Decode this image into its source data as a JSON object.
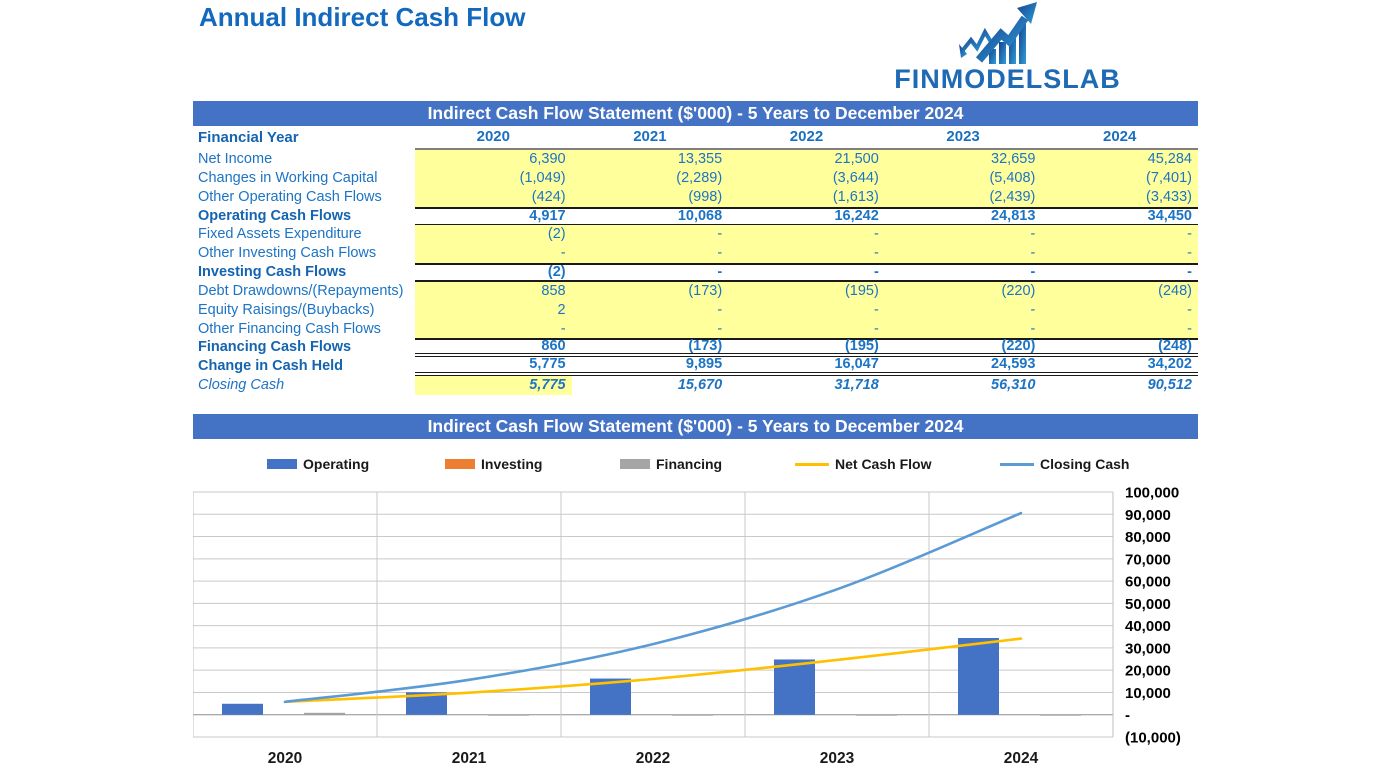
{
  "page": {
    "title": "Annual Indirect Cash Flow"
  },
  "logo": {
    "text": "FINMODELSLAB",
    "icon": "growth-chart-arrow-icon"
  },
  "colors": {
    "band_blue": "#4472C4",
    "cell_yellow": "#FFFF9C",
    "text_blue": "#1C74C4",
    "text_blue_dark": "#1464B0",
    "title_blue": "#1269BE",
    "bar_operating": "#4472C4",
    "bar_investing": "#ED7D31",
    "bar_financing": "#A5A5A5",
    "line_net_cash_flow": "#FFC000",
    "line_closing_cash": "#5B9BD5"
  },
  "table": {
    "header": "Indirect Cash Flow Statement ($'000) - 5 Years to December 2024",
    "year_label": "Financial Year",
    "years": [
      "2020",
      "2021",
      "2022",
      "2023",
      "2024"
    ],
    "rows": [
      {
        "label": "Net Income",
        "values": [
          "6,390",
          "13,355",
          "21,500",
          "32,659",
          "45,284"
        ],
        "style": "data"
      },
      {
        "label": "Changes in Working Capital",
        "values": [
          "(1,049)",
          "(2,289)",
          "(3,644)",
          "(5,408)",
          "(7,401)"
        ],
        "style": "data"
      },
      {
        "label": "Other Operating Cash Flows",
        "values": [
          "(424)",
          "(998)",
          "(1,613)",
          "(2,439)",
          "(3,433)"
        ],
        "style": "data"
      },
      {
        "label": "Operating Cash Flows",
        "values": [
          "4,917",
          "10,068",
          "16,242",
          "24,813",
          "34,450"
        ],
        "style": "subtotal"
      },
      {
        "label": "Fixed Assets Expenditure",
        "values": [
          "(2)",
          "-",
          "-",
          "-",
          "-"
        ],
        "style": "data"
      },
      {
        "label": "Other Investing Cash Flows",
        "values": [
          "-",
          "-",
          "-",
          "-",
          "-"
        ],
        "style": "data"
      },
      {
        "label": "Investing Cash Flows",
        "values": [
          "(2)",
          "-",
          "-",
          "-",
          "-"
        ],
        "style": "subtotal"
      },
      {
        "label": "Debt Drawdowns/(Repayments)",
        "values": [
          "858",
          "(173)",
          "(195)",
          "(220)",
          "(248)"
        ],
        "style": "data"
      },
      {
        "label": "Equity Raisings/(Buybacks)",
        "values": [
          "2",
          "-",
          "-",
          "-",
          "-"
        ],
        "style": "data"
      },
      {
        "label": "Other Financing Cash Flows",
        "values": [
          "-",
          "-",
          "-",
          "-",
          "-"
        ],
        "style": "data"
      },
      {
        "label": "Financing Cash Flows",
        "values": [
          "860",
          "(173)",
          "(195)",
          "(220)",
          "(248)"
        ],
        "style": "subtotal-double"
      },
      {
        "label": "Change in Cash Held",
        "values": [
          "5,775",
          "9,895",
          "16,047",
          "24,593",
          "34,202"
        ],
        "style": "total-double"
      },
      {
        "label": "Closing Cash",
        "values": [
          "5,775",
          "15,670",
          "31,718",
          "56,310",
          "90,512"
        ],
        "style": "closing"
      }
    ]
  },
  "chart_header": "Indirect Cash Flow Statement ($'000) - 5 Years to December 2024",
  "chart_data": {
    "type": "bar",
    "title": "Indirect Cash Flow Statement ($'000) - 5 Years to December 2024",
    "categories": [
      "2020",
      "2021",
      "2022",
      "2023",
      "2024"
    ],
    "series": [
      {
        "name": "Operating",
        "type": "bar",
        "color": "#4472C4",
        "values": [
          4917,
          10068,
          16242,
          24813,
          34450
        ]
      },
      {
        "name": "Investing",
        "type": "bar",
        "color": "#ED7D31",
        "values": [
          -2,
          0,
          0,
          0,
          0
        ]
      },
      {
        "name": "Financing",
        "type": "bar",
        "color": "#A5A5A5",
        "values": [
          860,
          -173,
          -195,
          -220,
          -248
        ]
      },
      {
        "name": "Net Cash Flow",
        "type": "line",
        "color": "#FFC000",
        "values": [
          5775,
          9895,
          16047,
          24593,
          34202
        ]
      },
      {
        "name": "Closing Cash",
        "type": "line",
        "color": "#5B9BD5",
        "values": [
          5775,
          15670,
          31718,
          56310,
          90512
        ]
      }
    ],
    "xlabel": "",
    "ylabel": "",
    "ylim": [
      -10000,
      100000
    ],
    "ytick_step": 10000,
    "y_tick_labels": [
      "100,000",
      "90,000",
      "80,000",
      "70,000",
      "60,000",
      "50,000",
      "40,000",
      "30,000",
      "20,000",
      "10,000",
      "-",
      "(10,000)"
    ],
    "grid": true,
    "legend_position": "top",
    "y_axis_side": "right"
  }
}
